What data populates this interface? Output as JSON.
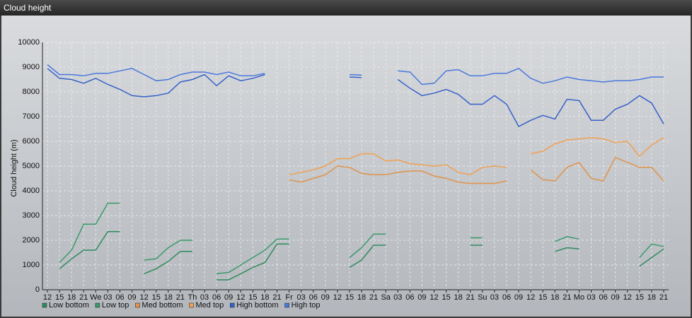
{
  "header": {
    "title": "Cloud height"
  },
  "chart_data": {
    "type": "line",
    "y_label": "Cloud height (m)",
    "categories": [
      "12",
      "15",
      "18",
      "21",
      "We",
      "03",
      "06",
      "09",
      "12",
      "15",
      "18",
      "21",
      "Th",
      "03",
      "06",
      "09",
      "12",
      "15",
      "18",
      "21",
      "Fr",
      "03",
      "06",
      "09",
      "12",
      "15",
      "18",
      "21",
      "Sa",
      "03",
      "06",
      "09",
      "12",
      "15",
      "18",
      "21",
      "Su",
      "03",
      "06",
      "09",
      "12",
      "15",
      "18",
      "21",
      "Mo",
      "03",
      "06",
      "09",
      "12",
      "15",
      "18",
      "21"
    ],
    "ylim": [
      0,
      10000
    ],
    "yticks": [
      0,
      1000,
      2000,
      3000,
      4000,
      5000,
      6000,
      7000,
      8000,
      9000,
      10000
    ],
    "grid": true,
    "series": [
      {
        "name": "Low bottom",
        "color": "#2f8a5c",
        "values": [
          null,
          850,
          1250,
          1600,
          1600,
          2350,
          2350,
          null,
          650,
          850,
          1150,
          1550,
          1550,
          null,
          400,
          400,
          650,
          900,
          1100,
          1850,
          1850,
          null,
          null,
          null,
          null,
          900,
          1200,
          1800,
          1800,
          null,
          null,
          null,
          null,
          null,
          null,
          1800,
          1800,
          null,
          null,
          null,
          null,
          null,
          1550,
          1700,
          1650,
          null,
          null,
          null,
          null,
          950,
          1300,
          1650
        ]
      },
      {
        "name": "Low top",
        "color": "#3a9a6a",
        "values": [
          null,
          1100,
          1600,
          2650,
          2650,
          3500,
          3500,
          null,
          1200,
          1250,
          1700,
          2000,
          2000,
          null,
          650,
          700,
          1000,
          1300,
          1600,
          2050,
          2050,
          null,
          null,
          null,
          null,
          1300,
          1700,
          2250,
          2250,
          null,
          null,
          null,
          null,
          null,
          null,
          2100,
          2100,
          null,
          null,
          null,
          null,
          null,
          1950,
          2150,
          2050,
          null,
          null,
          null,
          null,
          1300,
          1850,
          1750
        ]
      },
      {
        "name": "Med bottom",
        "color": "#e0924a",
        "values": [
          null,
          null,
          null,
          null,
          null,
          null,
          null,
          null,
          null,
          null,
          null,
          null,
          null,
          null,
          null,
          null,
          null,
          null,
          null,
          null,
          4450,
          4350,
          4500,
          4650,
          5000,
          4950,
          4700,
          4650,
          4650,
          4750,
          4800,
          4800,
          4600,
          4500,
          4350,
          4300,
          4300,
          4300,
          4400,
          null,
          4850,
          4450,
          4400,
          4950,
          5150,
          4500,
          4400,
          5350,
          5150,
          4950,
          4950,
          4400
        ]
      },
      {
        "name": "Med top",
        "color": "#f0a050",
        "values": [
          null,
          null,
          null,
          null,
          null,
          null,
          null,
          null,
          null,
          null,
          null,
          null,
          null,
          null,
          null,
          null,
          null,
          null,
          null,
          null,
          4650,
          4750,
          4850,
          5000,
          5300,
          5300,
          5500,
          5500,
          5200,
          5250,
          5100,
          5050,
          5000,
          5050,
          4750,
          4650,
          4950,
          5000,
          4950,
          null,
          5500,
          5600,
          5900,
          6050,
          6100,
          6150,
          6100,
          5950,
          6000,
          5400,
          5850,
          6150
        ]
      },
      {
        "name": "High bottom",
        "color": "#3561c8",
        "values": [
          8950,
          8550,
          8500,
          8350,
          8550,
          8300,
          8100,
          7850,
          7800,
          7850,
          7950,
          8400,
          8500,
          8700,
          8250,
          8650,
          8450,
          8550,
          8700,
          null,
          null,
          null,
          null,
          null,
          null,
          8600,
          8580,
          null,
          null,
          8500,
          8150,
          7850,
          7950,
          8100,
          7900,
          7500,
          7500,
          7850,
          7500,
          6600,
          6850,
          7050,
          6900,
          7700,
          7650,
          6850,
          6850,
          7300,
          7500,
          7850,
          7550,
          6700
        ]
      },
      {
        "name": "High top",
        "color": "#4a78dc",
        "values": [
          9100,
          8700,
          8700,
          8650,
          8750,
          8750,
          8850,
          8950,
          8700,
          8450,
          8500,
          8700,
          8800,
          8800,
          8700,
          8800,
          8650,
          8650,
          8750,
          null,
          null,
          null,
          null,
          null,
          null,
          8700,
          8680,
          null,
          null,
          8850,
          8800,
          8300,
          8350,
          8850,
          8900,
          8650,
          8650,
          8750,
          8750,
          8950,
          8550,
          8350,
          8450,
          8600,
          8500,
          8450,
          8400,
          8450,
          8450,
          8500,
          8600,
          8600
        ]
      }
    ]
  }
}
